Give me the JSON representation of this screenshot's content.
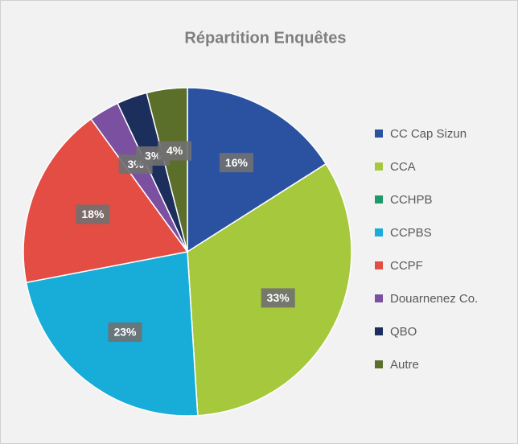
{
  "chart_data": {
    "type": "pie",
    "title": "Répartition Enquêtes",
    "categories": [
      "CC Cap Sizun",
      "CCA",
      "CCHPB",
      "CCPBS",
      "CCPF",
      "Douarnenez Co.",
      "QBO",
      "Autre"
    ],
    "values": [
      16,
      33,
      0,
      23,
      18,
      3,
      3,
      4
    ],
    "value_labels": [
      "16%",
      "33%",
      null,
      "23%",
      "18%",
      "3%",
      "3%",
      "4%"
    ],
    "colors": [
      "#2b52a1",
      "#a6c83c",
      "#1b9b6b",
      "#18acd8",
      "#e34d44",
      "#7c50a1",
      "#1c2e5b",
      "#5b6f2b"
    ],
    "legend": "right"
  }
}
